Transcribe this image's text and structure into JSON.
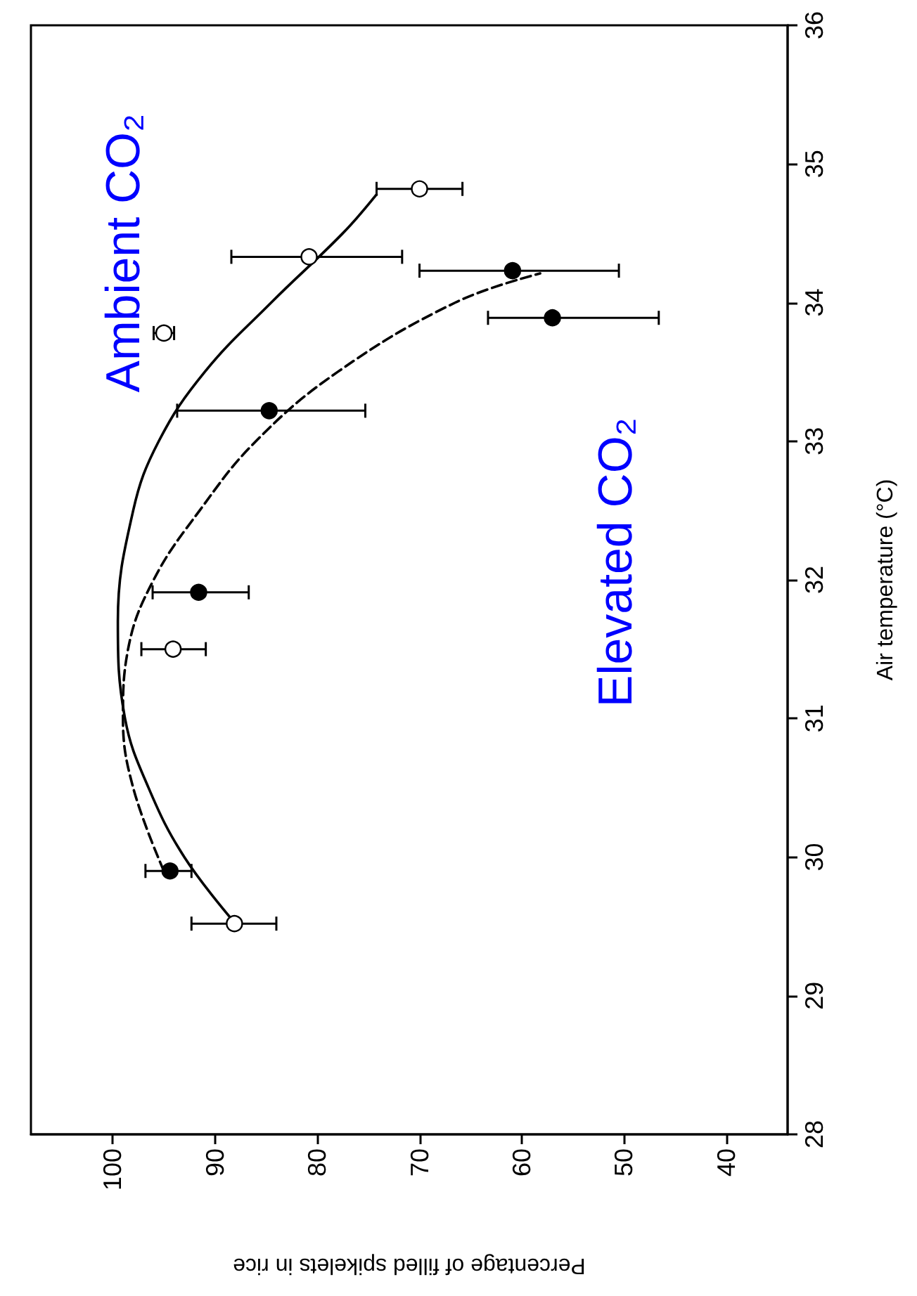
{
  "chart_data": {
    "type": "scatter",
    "xlabel": "Percentage of filled spikelets in rice",
    "ylabel": "Air temperature (°C)",
    "xlim": [
      108,
      34
    ],
    "xticks": [
      100,
      90,
      80,
      70,
      60,
      50,
      40
    ],
    "ylim": [
      28,
      36
    ],
    "yticks": [
      28,
      29,
      30,
      31,
      32,
      33,
      34,
      35,
      36
    ],
    "grid": false,
    "marker": "circle",
    "series": [
      {
        "color": "#ffffff",
        "values": [
          29.52,
          31.5,
          33.78,
          34.33,
          34.82
        ],
        "x": [
          88.1,
          94.1,
          95.0,
          80.8,
          70.0
        ],
        "xerrors": [
          [
            84.0,
            92.3
          ],
          [
            90.9,
            97.2
          ],
          [
            94.0,
            96.0
          ],
          [
            71.7,
            88.4
          ],
          [
            65.8,
            74.2
          ]
        ]
      },
      {
        "color": "#000000",
        "values": [
          29.9,
          31.91,
          33.22,
          33.89,
          34.23
        ],
        "x": [
          94.4,
          91.6,
          84.7,
          57.0,
          60.9
        ],
        "xerrors": [
          [
            92.3,
            96.8
          ],
          [
            86.7,
            96.1
          ],
          [
            75.3,
            93.7
          ],
          [
            46.6,
            63.3
          ],
          [
            50.5,
            70.0
          ]
        ]
      },
      {
        "type": "line",
        "color": "#000000",
        "line_style": "solid",
        "marker": "none",
        "values": [
          29.52,
          30.0,
          30.5,
          31.0,
          31.7,
          32.5,
          33.0,
          33.5,
          34.0,
          34.5,
          34.78
        ],
        "x": [
          88.0,
          93.0,
          96.5,
          98.8,
          99.5,
          98.0,
          95.5,
          91.0,
          84.5,
          77.5,
          74.2
        ]
      },
      {
        "type": "line",
        "color": "#000000",
        "line_style": "dashed",
        "marker": "none",
        "values": [
          29.9,
          30.5,
          31.0,
          31.5,
          32.0,
          32.5,
          33.0,
          33.5,
          34.0,
          34.21
        ],
        "x": [
          95.0,
          98.0,
          99.0,
          98.5,
          96.0,
          91.5,
          86.0,
          78.0,
          66.5,
          58.2
        ]
      }
    ],
    "annotations": [
      "Ambient CO₂",
      "Elevated CO₂"
    ]
  }
}
